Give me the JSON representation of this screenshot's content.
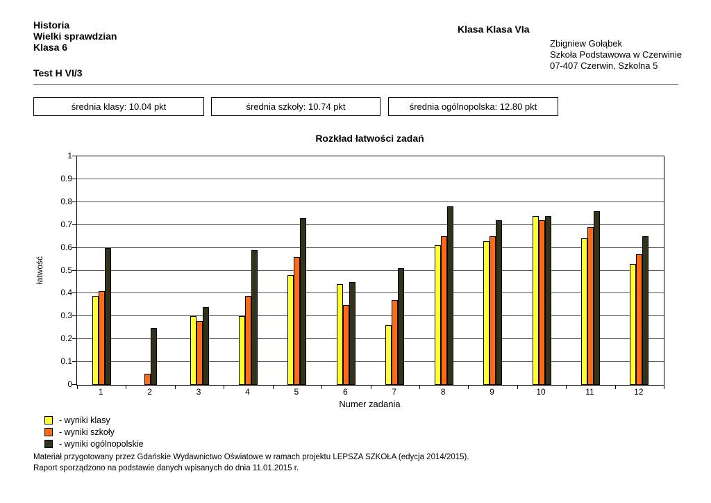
{
  "header": {
    "subject": "Historia",
    "exam": "Wielki sprawdzian",
    "grade": "Klasa 6",
    "test": "Test H VI/3",
    "class_label": "Klasa Klasa VIa",
    "teacher": "Zbigniew Gołąbek",
    "school": "Szkoła Podstawowa w Czerwinie",
    "address": "07-407 Czerwin, Szkolna 5"
  },
  "stats": {
    "class_avg": "średnia klasy: 10.04 pkt",
    "school_avg": "średnia szkoły: 10.74 pkt",
    "national_avg": "średnia ogólnopolska: 12.80 pkt"
  },
  "chart_data": {
    "type": "bar",
    "title": "Rozkład łatwości zadań",
    "xlabel": "Numer zadania",
    "ylabel": "łatwość",
    "ylim": [
      0,
      1
    ],
    "yticks": [
      0,
      0.1,
      0.2,
      0.3,
      0.4,
      0.5,
      0.6,
      0.7,
      0.8,
      0.9,
      1
    ],
    "grid": true,
    "legend_position": "bottom-left",
    "categories": [
      "1",
      "2",
      "3",
      "4",
      "5",
      "6",
      "7",
      "8",
      "9",
      "10",
      "11",
      "12"
    ],
    "series": [
      {
        "name": "wyniki klasy",
        "color": "#ffff33",
        "values": [
          0.39,
          0,
          0.3,
          0.3,
          0.48,
          0.44,
          0.26,
          0.61,
          0.63,
          0.74,
          0.64,
          0.53
        ]
      },
      {
        "name": "wyniki szkoły",
        "color": "#ff6a14",
        "values": [
          0.41,
          0.05,
          0.28,
          0.39,
          0.56,
          0.35,
          0.37,
          0.65,
          0.65,
          0.72,
          0.69,
          0.57
        ]
      },
      {
        "name": "wyniki ogólnopolskie",
        "color": "#33331c",
        "values": [
          0.6,
          0.25,
          0.34,
          0.59,
          0.73,
          0.45,
          0.51,
          0.78,
          0.72,
          0.74,
          0.76,
          0.65
        ]
      }
    ]
  },
  "legend": {
    "items": [
      {
        "label": "- wyniki klasy",
        "color": "#ffff33"
      },
      {
        "label": "- wyniki szkoły",
        "color": "#ff6a14"
      },
      {
        "label": "- wyniki ogólnopolskie",
        "color": "#33331c"
      }
    ]
  },
  "footer": {
    "line1": "Materiał przygotowany przez Gdańskie Wydawnictwo Oświatowe w ramach projektu LEPSZA SZKOŁA (edycja 2014/2015).",
    "line2": "Raport sporządzono na podstawie danych wpisanych do dnia 11.01.2015 r."
  }
}
